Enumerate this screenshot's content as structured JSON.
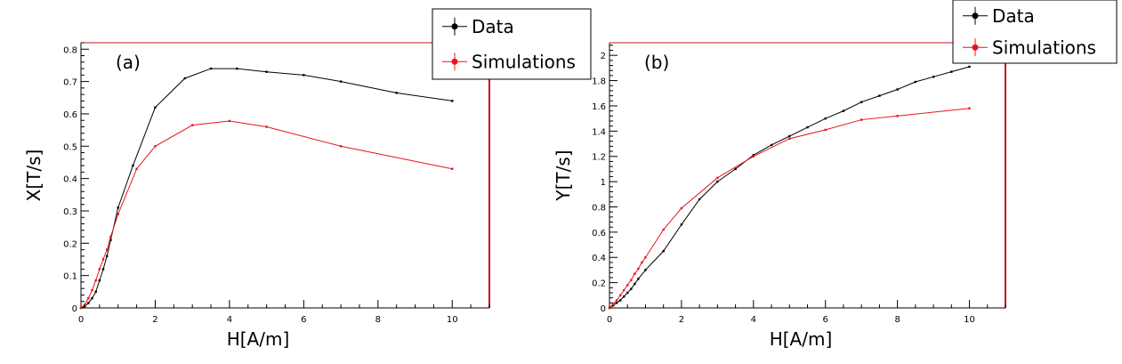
{
  "chart_data": [
    {
      "type": "line",
      "panel_label": "(a)",
      "xlabel": "H[A/m]",
      "ylabel": "X[T/s]",
      "xlim": [
        0,
        11
      ],
      "ylim": [
        0,
        0.82
      ],
      "x_ticks": [
        0,
        2,
        4,
        6,
        8,
        10
      ],
      "x_tick_labels": [
        "0",
        "2",
        "4",
        "6",
        "8",
        "10"
      ],
      "y_ticks": [
        0,
        0.1,
        0.2,
        0.3,
        0.4,
        0.5,
        0.6,
        0.7,
        0.8
      ],
      "y_tick_labels": [
        "0",
        "0.1",
        "0.2",
        "0.3",
        "0.4",
        "0.5",
        "0.6",
        "0.7",
        "0.8"
      ],
      "grid": false,
      "legend": [
        {
          "label": "Data",
          "color": "#000000"
        },
        {
          "label": "Simulations",
          "color": "#e8141c"
        }
      ],
      "series": [
        {
          "name": "Data",
          "color": "#000000",
          "x": [
            0,
            0.1,
            0.2,
            0.3,
            0.4,
            0.5,
            0.6,
            0.7,
            0.8,
            1.0,
            1.4,
            2.0,
            2.8,
            3.5,
            4.2,
            5.0,
            6.0,
            7.0,
            8.5,
            10.0
          ],
          "y": [
            0,
            0.005,
            0.015,
            0.03,
            0.05,
            0.085,
            0.12,
            0.16,
            0.21,
            0.31,
            0.44,
            0.62,
            0.71,
            0.74,
            0.74,
            0.73,
            0.72,
            0.7,
            0.665,
            0.64
          ]
        },
        {
          "name": "Simulations",
          "color": "#e8141c",
          "x": [
            0,
            0.1,
            0.2,
            0.3,
            0.4,
            0.5,
            0.6,
            0.7,
            0.8,
            1.0,
            1.5,
            2.0,
            3.0,
            4.0,
            5.0,
            7.0,
            10.0
          ],
          "y": [
            0,
            0.01,
            0.03,
            0.055,
            0.085,
            0.12,
            0.15,
            0.18,
            0.22,
            0.29,
            0.43,
            0.5,
            0.565,
            0.578,
            0.56,
            0.5,
            0.43
          ]
        }
      ]
    },
    {
      "type": "line",
      "panel_label": "(b)",
      "xlabel": "H[A/m]",
      "ylabel": "Y[T/s]",
      "xlim": [
        0,
        11
      ],
      "ylim": [
        0,
        2.1
      ],
      "x_ticks": [
        0,
        2,
        4,
        6,
        8,
        10
      ],
      "x_tick_labels": [
        "0",
        "2",
        "4",
        "6",
        "8",
        "10"
      ],
      "y_ticks": [
        0,
        0.2,
        0.4,
        0.6,
        0.8,
        1,
        1.2,
        1.4,
        1.6,
        1.8,
        2
      ],
      "y_tick_labels": [
        "0",
        "0.2",
        "0.4",
        "0.6",
        "0.8",
        "1",
        "1.2",
        "1.4",
        "1.6",
        "1.8",
        "2"
      ],
      "grid": false,
      "legend": [
        {
          "label": "Data",
          "color": "#000000"
        },
        {
          "label": "Simulations",
          "color": "#e8141c"
        }
      ],
      "series": [
        {
          "name": "Data",
          "color": "#000000",
          "x": [
            0,
            0.1,
            0.2,
            0.3,
            0.4,
            0.5,
            0.6,
            0.7,
            0.8,
            1.0,
            1.5,
            2.0,
            2.5,
            3.0,
            3.5,
            4.0,
            4.5,
            5.0,
            5.5,
            6.0,
            6.5,
            7.0,
            7.5,
            8.0,
            8.5,
            9.0,
            9.5,
            10.0
          ],
          "y": [
            0,
            0.02,
            0.04,
            0.06,
            0.09,
            0.12,
            0.15,
            0.19,
            0.23,
            0.3,
            0.45,
            0.66,
            0.86,
            1.0,
            1.1,
            1.21,
            1.29,
            1.36,
            1.43,
            1.5,
            1.56,
            1.63,
            1.68,
            1.73,
            1.79,
            1.83,
            1.87,
            1.91
          ]
        },
        {
          "name": "Simulations",
          "color": "#e8141c",
          "x": [
            0,
            0.1,
            0.2,
            0.3,
            0.4,
            0.5,
            0.6,
            0.7,
            0.8,
            0.9,
            1.0,
            1.5,
            2.0,
            3.0,
            4.0,
            5.0,
            6.0,
            7.0,
            8.0,
            10.0
          ],
          "y": [
            0,
            0.03,
            0.06,
            0.1,
            0.14,
            0.18,
            0.22,
            0.27,
            0.31,
            0.36,
            0.4,
            0.62,
            0.79,
            1.03,
            1.2,
            1.34,
            1.41,
            1.49,
            1.52,
            1.58
          ]
        }
      ]
    }
  ]
}
